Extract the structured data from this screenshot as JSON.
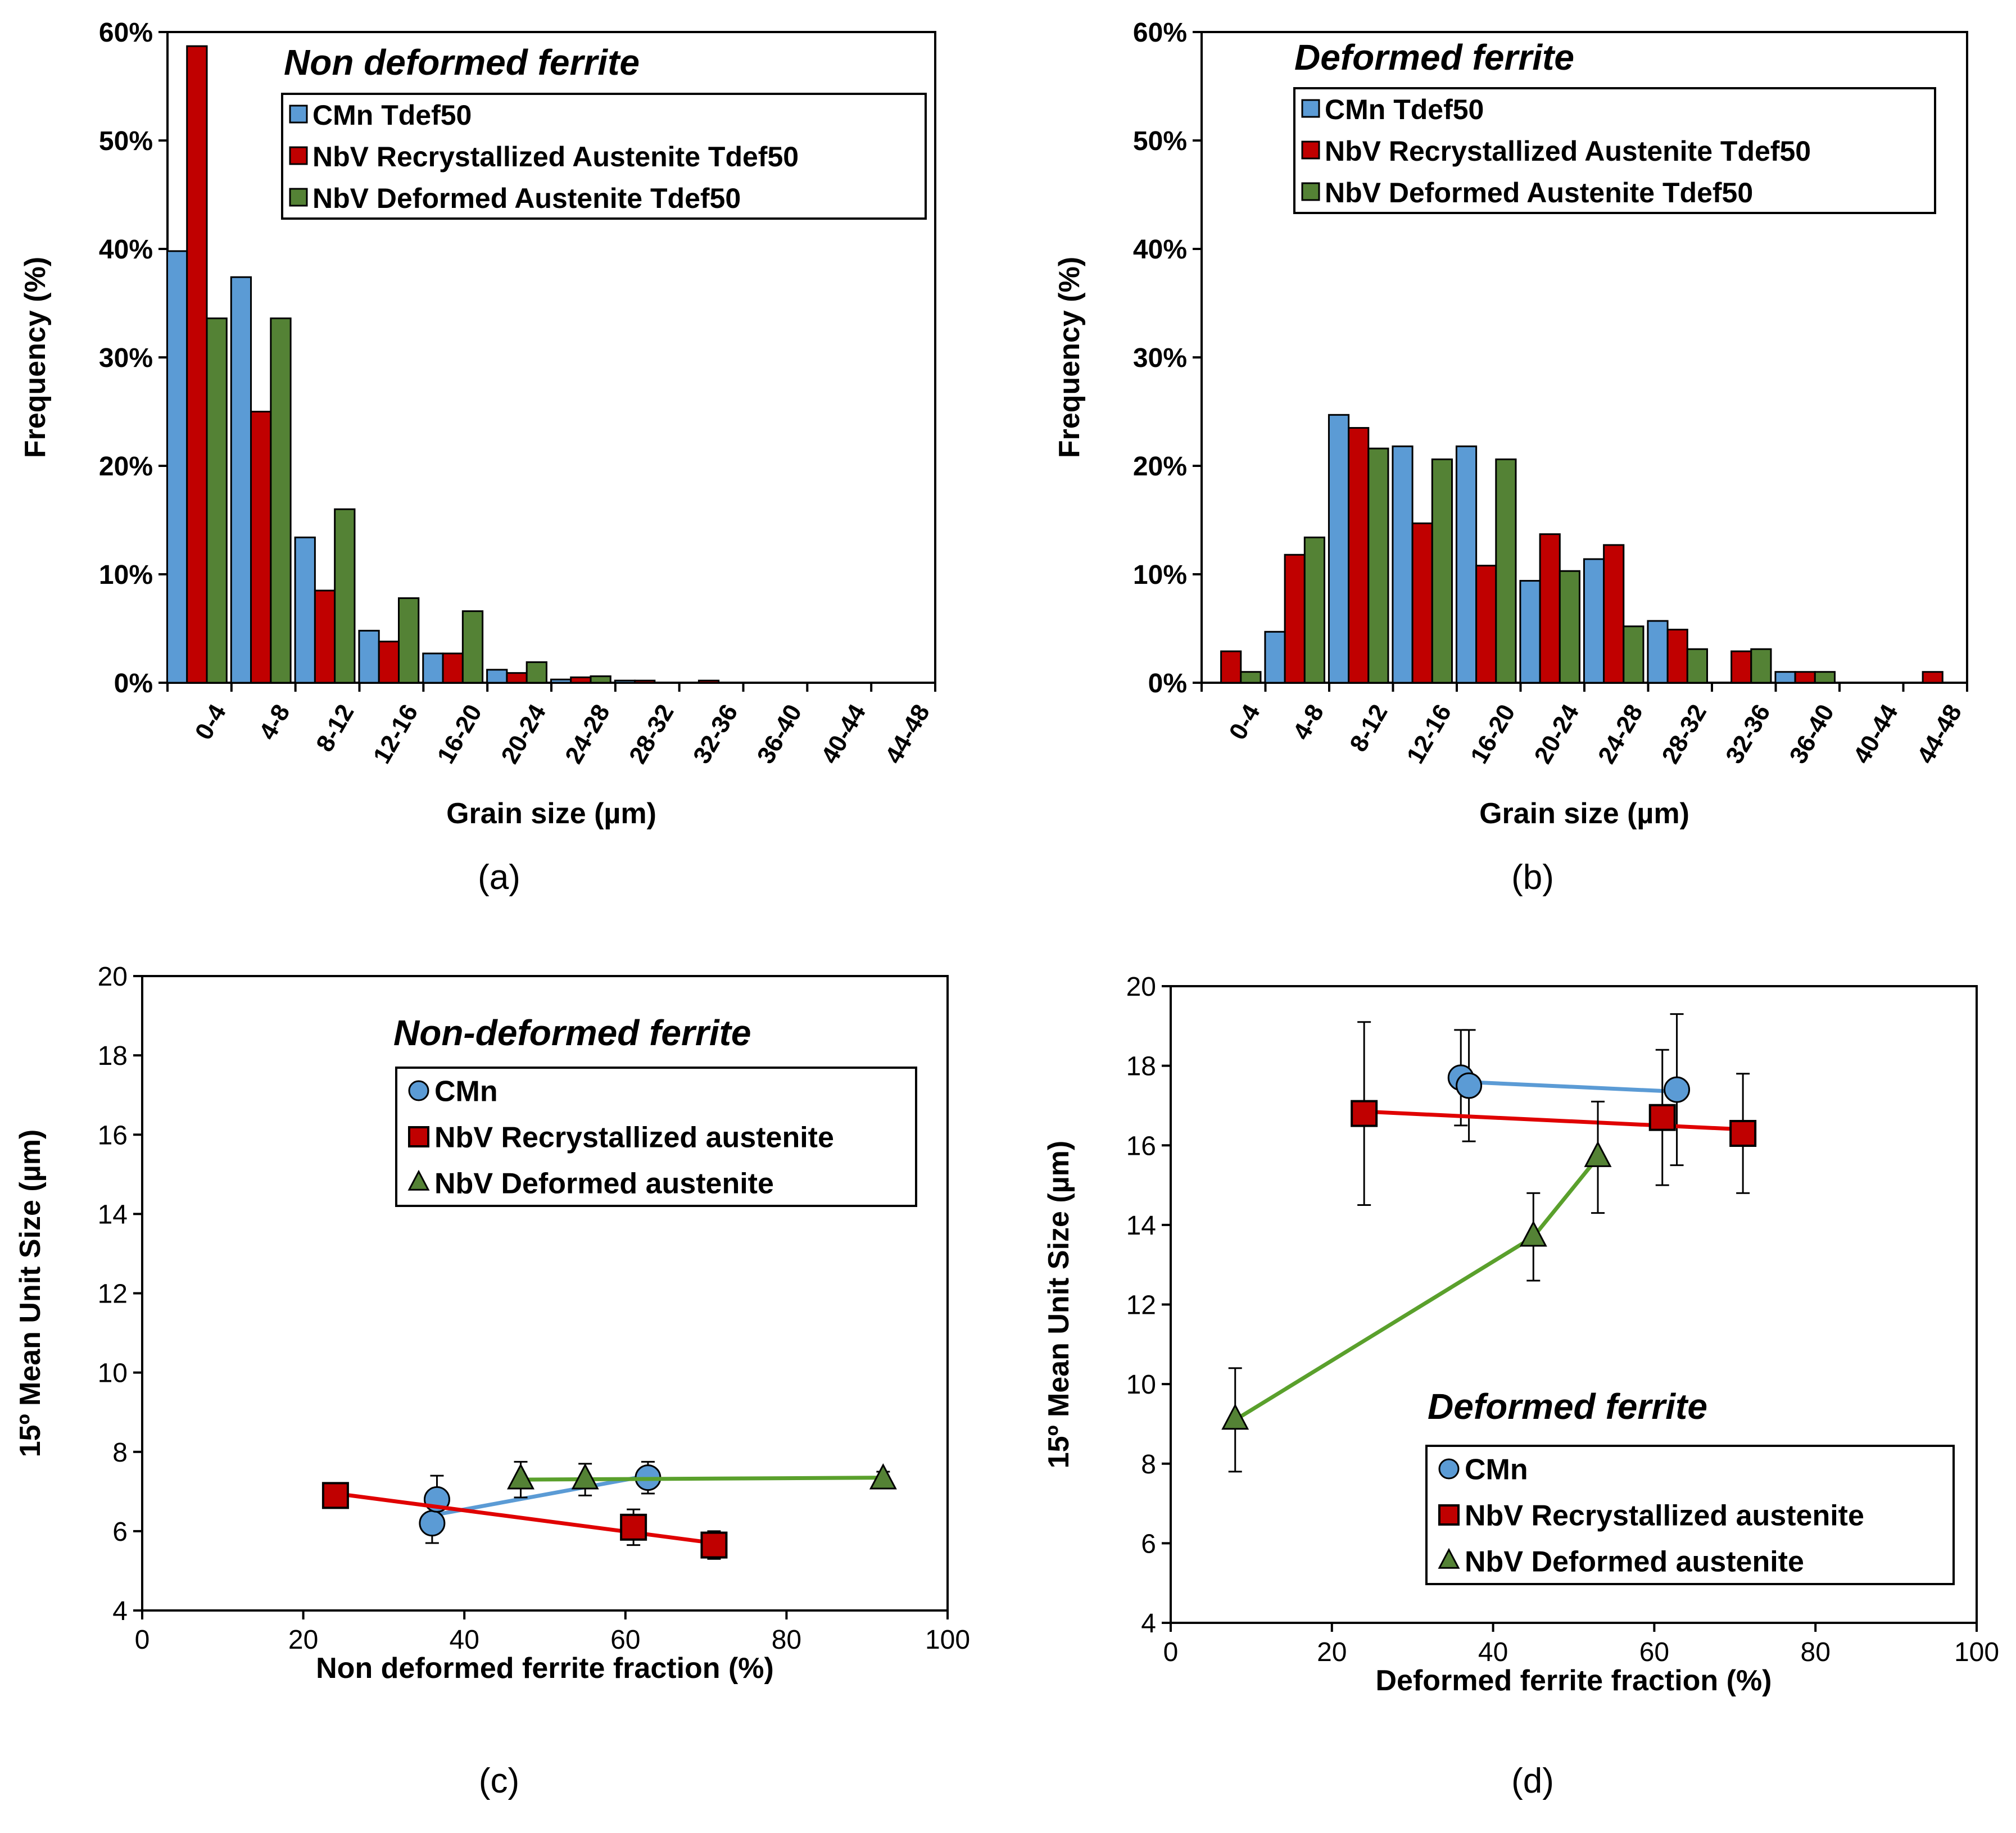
{
  "colors": {
    "cmn": "#5B9BD5",
    "recryst": "#C00000",
    "deformed": "#548235",
    "cmn_line": "#5B9BD5",
    "recryst_line": "#E00000",
    "deformed_line": "#5AA02C",
    "axis": "#000000"
  },
  "chart_data": [
    {
      "id": "a",
      "type": "bar",
      "panel_label": "(a)",
      "title": "Non deformed ferrite",
      "xlabel": "Grain size (µm)",
      "ylabel": "Frequency (%)",
      "ylim": [
        0,
        60
      ],
      "yticks": [
        "0%",
        "10%",
        "20%",
        "30%",
        "40%",
        "50%",
        "60%"
      ],
      "legend_position": "top-right",
      "categories": [
        "0-4",
        "4-8",
        "8-12",
        "12-16",
        "16-20",
        "20-24",
        "24-28",
        "28-32",
        "32-36",
        "36-40",
        "40-44",
        "44-48"
      ],
      "series": [
        {
          "name": "CMn Tdef50",
          "key": "cmn",
          "values": [
            39.8,
            37.4,
            13.4,
            4.8,
            2.7,
            1.2,
            0.3,
            0.2,
            0,
            0,
            0,
            0
          ]
        },
        {
          "name": "NbV Recrystallized Austenite Tdef50",
          "key": "recryst",
          "values": [
            58.7,
            25.0,
            8.5,
            3.8,
            2.7,
            0.9,
            0.5,
            0.2,
            0.2,
            0,
            0,
            0
          ]
        },
        {
          "name": "NbV Deformed Austenite Tdef50",
          "key": "deformed",
          "values": [
            33.6,
            33.6,
            16.0,
            7.8,
            6.6,
            1.9,
            0.6,
            0,
            0,
            0,
            0,
            0
          ]
        }
      ]
    },
    {
      "id": "b",
      "type": "bar",
      "panel_label": "(b)",
      "title": "Deformed ferrite",
      "xlabel": "Grain size (µm)",
      "ylabel": "Frequency (%)",
      "ylim": [
        0,
        60
      ],
      "yticks": [
        "0%",
        "10%",
        "20%",
        "30%",
        "40%",
        "50%",
        "60%"
      ],
      "legend_position": "top-right",
      "categories": [
        "0-4",
        "4-8",
        "8-12",
        "12-16",
        "16-20",
        "20-24",
        "24-28",
        "28-32",
        "32-36",
        "36-40",
        "40-44",
        "44-48"
      ],
      "series": [
        {
          "name": "CMn Tdef50",
          "key": "cmn",
          "values": [
            0,
            4.7,
            24.7,
            21.8,
            21.8,
            9.4,
            11.4,
            5.7,
            0,
            1.0,
            0,
            0
          ]
        },
        {
          "name": "NbV Recrystallized Austenite Tdef50",
          "key": "recryst",
          "values": [
            2.9,
            11.8,
            23.5,
            14.7,
            10.8,
            13.7,
            12.7,
            4.9,
            2.9,
            1.0,
            0,
            1.0
          ]
        },
        {
          "name": "NbV Deformed Austenite Tdef50",
          "key": "deformed",
          "values": [
            1.0,
            13.4,
            21.6,
            20.6,
            20.6,
            10.3,
            5.2,
            3.1,
            3.1,
            1.0,
            0,
            0
          ]
        }
      ]
    },
    {
      "id": "c",
      "type": "scatter",
      "panel_label": "(c)",
      "title": "Non-deformed ferrite",
      "xlabel": "Non deformed ferrite fraction (%)",
      "ylabel": "15º Mean Unit Size (µm)",
      "xlim": [
        0,
        100
      ],
      "ylim": [
        4,
        20
      ],
      "xticks": [
        "0",
        "20",
        "40",
        "60",
        "80",
        "100"
      ],
      "yticks": [
        "4",
        "6",
        "8",
        "10",
        "12",
        "14",
        "16",
        "18",
        "20"
      ],
      "legend_position": "top-right",
      "series": [
        {
          "name": "CMn",
          "key": "cmn",
          "marker": "circle",
          "points": [
            [
              36,
              6.2,
              0.5
            ],
            [
              36.6,
              6.8,
              0.6
            ],
            [
              62.8,
              7.35,
              0.4
            ]
          ],
          "fit": [
            [
              36,
              6.4
            ],
            [
              62.8,
              7.4
            ]
          ]
        },
        {
          "name": "NbV Recrystallized austenite",
          "key": "recryst",
          "marker": "square",
          "points": [
            [
              24,
              6.9,
              0
            ],
            [
              61,
              6.1,
              0.45
            ],
            [
              71,
              5.65,
              0.35
            ]
          ],
          "fit": [
            [
              24,
              6.95
            ],
            [
              71,
              5.7
            ]
          ]
        },
        {
          "name": "NbV Deformed austenite",
          "key": "deformed",
          "marker": "triangle",
          "points": [
            [
              47,
              7.3,
              0.45
            ],
            [
              55,
              7.3,
              0.4
            ],
            [
              92,
              7.3,
              0.2
            ]
          ],
          "fit": [
            [
              47,
              7.3
            ],
            [
              92,
              7.35
            ]
          ]
        }
      ]
    },
    {
      "id": "d",
      "type": "scatter",
      "panel_label": "(d)",
      "title": "Deformed ferrite",
      "xlabel": "Deformed ferrite fraction (%)",
      "ylabel": "15º Mean Unit Size (µm)",
      "xlim": [
        0,
        100
      ],
      "ylim": [
        4,
        20
      ],
      "xticks": [
        "0",
        "20",
        "40",
        "60",
        "80",
        "100"
      ],
      "yticks": [
        "4",
        "6",
        "8",
        "10",
        "12",
        "14",
        "16",
        "18",
        "20"
      ],
      "legend_position": "bottom-right",
      "series": [
        {
          "name": "CMn",
          "key": "cmn",
          "marker": "circle",
          "points": [
            [
              36,
              17.7,
              1.2
            ],
            [
              37,
              17.5,
              1.4
            ],
            [
              62.8,
              17.4,
              1.9
            ]
          ],
          "fit": [
            [
              36,
              17.6
            ],
            [
              62.8,
              17.35
            ]
          ]
        },
        {
          "name": "NbV Recrystallized austenite",
          "key": "recryst",
          "marker": "square",
          "points": [
            [
              24,
              16.8,
              2.3
            ],
            [
              61,
              16.7,
              1.7
            ],
            [
              71,
              16.3,
              1.5
            ]
          ],
          "fit": [
            [
              24,
              16.85
            ],
            [
              71,
              16.4
            ]
          ]
        },
        {
          "name": "NbV Deformed austenite",
          "key": "deformed",
          "marker": "triangle",
          "points": [
            [
              8,
              9.1,
              1.3
            ],
            [
              45,
              13.7,
              1.1
            ],
            [
              53,
              15.7,
              1.4
            ]
          ],
          "fit": [
            [
              8,
              9.1
            ],
            [
              45,
              13.7
            ],
            [
              53,
              15.7
            ]
          ]
        }
      ]
    }
  ]
}
